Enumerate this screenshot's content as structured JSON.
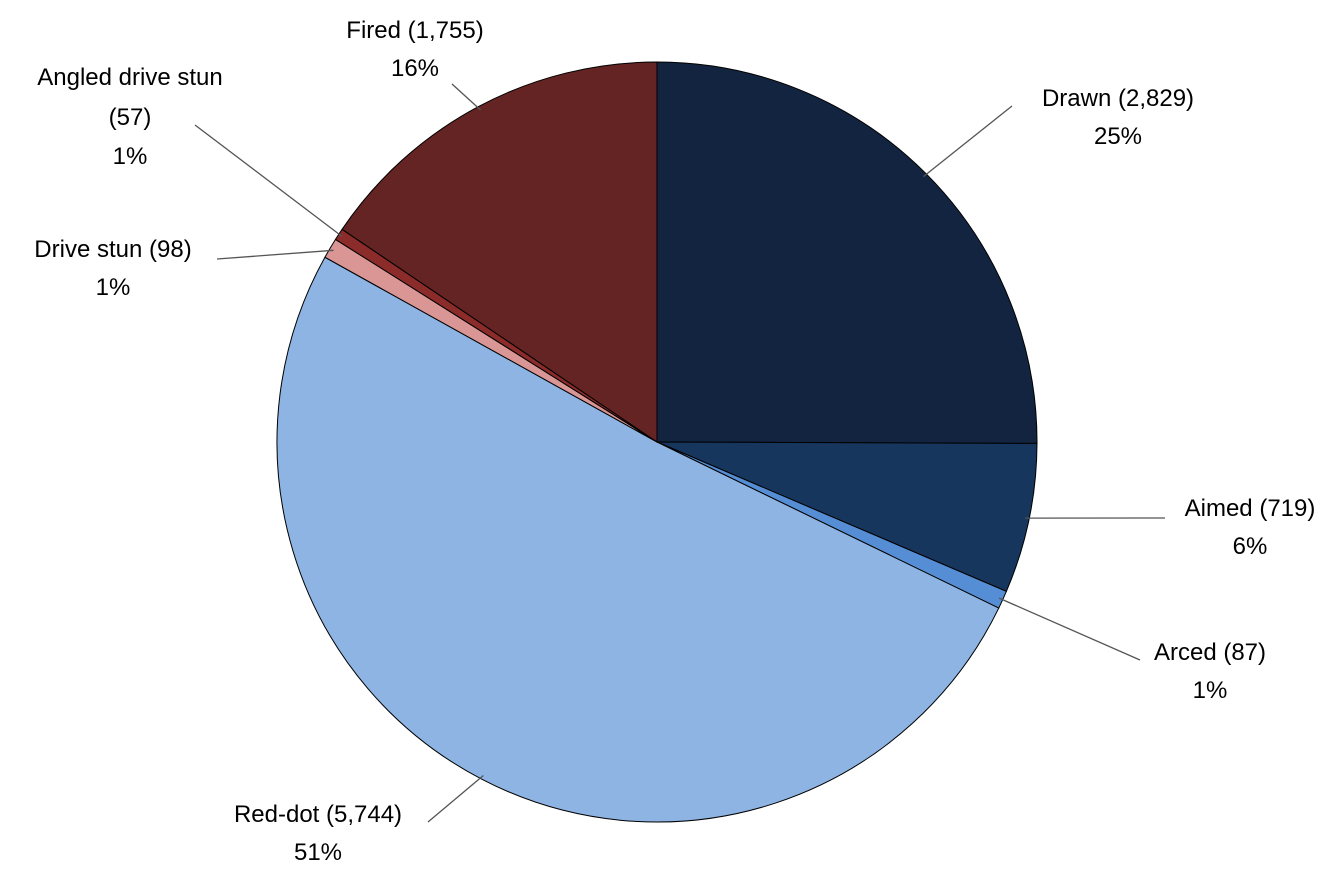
{
  "chart_data": {
    "type": "pie",
    "categories": [
      "Drawn (2,829)",
      "Aimed (719)",
      "Arced (87)",
      "Red-dot (5,744)",
      "Drive stun (98)",
      "Angled drive stun (57)",
      "Fired (1,755)"
    ],
    "values": [
      2829,
      719,
      87,
      5744,
      98,
      57,
      1755
    ],
    "value_labels": [
      "25%",
      "6%",
      "1%",
      "51%",
      "1%",
      "1%",
      "16%"
    ],
    "colors": [
      "#12243f",
      "#17365d",
      "#558ed5",
      "#8eb4e3",
      "#d99694",
      "#8b2b2a",
      "#632423"
    ]
  }
}
